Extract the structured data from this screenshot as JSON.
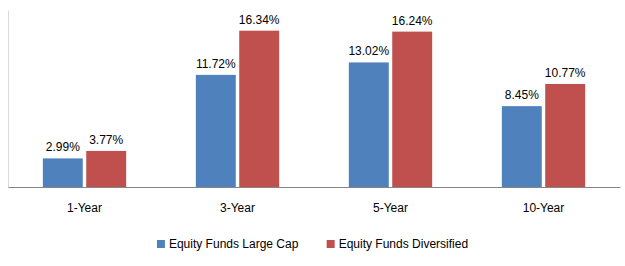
{
  "chart_data": {
    "type": "bar",
    "categories": [
      "1-Year",
      "3-Year",
      "5-Year",
      "10-Year"
    ],
    "series": [
      {
        "name": "Equity Funds Large Cap",
        "color": "#4f81bd",
        "values": [
          2.99,
          11.72,
          13.02,
          8.45
        ],
        "value_labels": [
          "2.99%",
          "11.72%",
          "13.02%",
          "8.45%"
        ]
      },
      {
        "name": "Equity Funds Diversified",
        "color": "#c0504d",
        "values": [
          3.77,
          16.34,
          16.24,
          10.77
        ],
        "value_labels": [
          "3.77%",
          "16.34%",
          "16.24%",
          "10.77%"
        ]
      }
    ],
    "ylim": [
      0,
      18.5
    ],
    "yticks": [],
    "grid": false,
    "data_labels": true,
    "tick_labels": "x",
    "legend": "bottom"
  }
}
